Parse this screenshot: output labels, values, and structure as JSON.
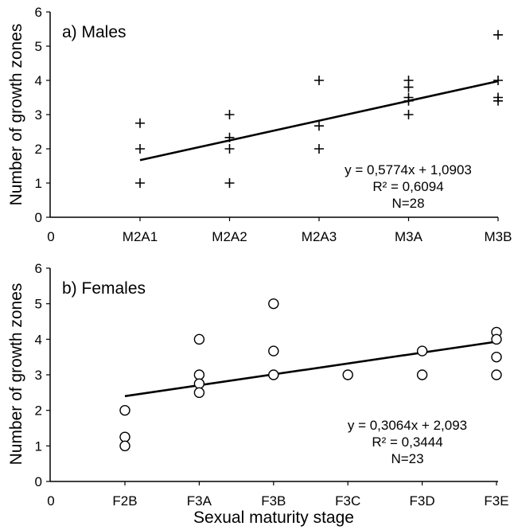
{
  "chart_data": [
    {
      "type": "scatter",
      "panel_label": "a) Males",
      "ylabel": "Number of growth zones",
      "xlabel": "",
      "origin_label": "0",
      "categories": [
        "M2A1",
        "M2A2",
        "M2A3",
        "M3A",
        "M3B"
      ],
      "ylim": [
        0,
        6
      ],
      "yticks": [
        "0",
        "1",
        "2",
        "3",
        "4",
        "5",
        "6"
      ],
      "marker": "plus",
      "points": [
        {
          "x": "M2A1",
          "y": 2.75
        },
        {
          "x": "M2A1",
          "y": 2.0
        },
        {
          "x": "M2A1",
          "y": 1.0
        },
        {
          "x": "M2A2",
          "y": 3.0
        },
        {
          "x": "M2A2",
          "y": 2.33
        },
        {
          "x": "M2A2",
          "y": 2.0
        },
        {
          "x": "M2A2",
          "y": 1.0
        },
        {
          "x": "M2A3",
          "y": 4.0
        },
        {
          "x": "M2A3",
          "y": 2.67
        },
        {
          "x": "M2A3",
          "y": 2.0
        },
        {
          "x": "M3A",
          "y": 4.0
        },
        {
          "x": "M3A",
          "y": 3.8
        },
        {
          "x": "M3A",
          "y": 3.5
        },
        {
          "x": "M3A",
          "y": 3.4
        },
        {
          "x": "M3A",
          "y": 3.0
        },
        {
          "x": "M3B",
          "y": 5.33
        },
        {
          "x": "M3B",
          "y": 4.0
        },
        {
          "x": "M3B",
          "y": 3.5
        },
        {
          "x": "M3B",
          "y": 3.4
        }
      ],
      "trendline": {
        "slope": 0.5774,
        "intercept": 1.0903
      },
      "annotation": [
        "y = 0,5774x + 1,0903",
        "R² = 0,6094",
        "N=28"
      ]
    },
    {
      "type": "scatter",
      "panel_label": "b) Females",
      "ylabel": "Number of growth zones",
      "xlabel": "Sexual maturity stage",
      "origin_label": "0",
      "categories": [
        "F2B",
        "F3A",
        "F3B",
        "F3C",
        "F3D",
        "F3E"
      ],
      "ylim": [
        0,
        6
      ],
      "yticks": [
        "0",
        "1",
        "2",
        "3",
        "4",
        "5",
        "6"
      ],
      "marker": "circle",
      "points": [
        {
          "x": "F2B",
          "y": 2.0
        },
        {
          "x": "F2B",
          "y": 1.25
        },
        {
          "x": "F2B",
          "y": 1.0
        },
        {
          "x": "F3A",
          "y": 4.0
        },
        {
          "x": "F3A",
          "y": 3.0
        },
        {
          "x": "F3A",
          "y": 2.75
        },
        {
          "x": "F3A",
          "y": 2.5
        },
        {
          "x": "F3B",
          "y": 5.0
        },
        {
          "x": "F3B",
          "y": 3.67
        },
        {
          "x": "F3B",
          "y": 3.0
        },
        {
          "x": "F3C",
          "y": 3.0
        },
        {
          "x": "F3D",
          "y": 3.67
        },
        {
          "x": "F3D",
          "y": 3.0
        },
        {
          "x": "F3E",
          "y": 4.2
        },
        {
          "x": "F3E",
          "y": 4.0
        },
        {
          "x": "F3E",
          "y": 3.5
        },
        {
          "x": "F3E",
          "y": 3.0
        }
      ],
      "trendline": {
        "slope": 0.3064,
        "intercept": 2.093
      },
      "annotation": [
        "y = 0,3064x + 2,093",
        "R² = 0,3444",
        "N=23"
      ]
    }
  ]
}
